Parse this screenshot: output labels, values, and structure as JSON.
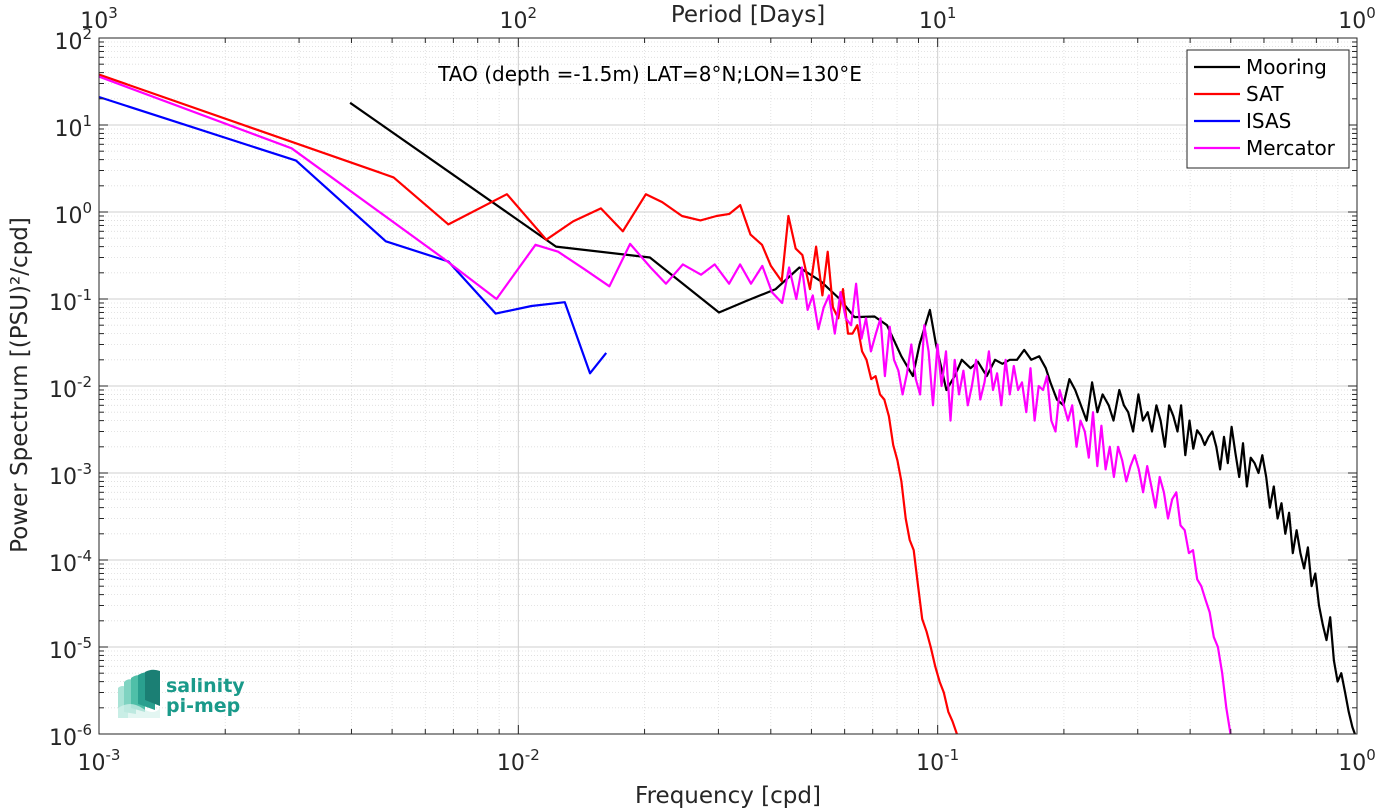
{
  "chart_data": {
    "type": "line",
    "title": "TAO (depth =-1.5m) LAT=8°N;LON=130°E",
    "xlabel": "Frequency [cpd]",
    "ylabel": "Power Spectrum [(PSU)²/cpd]",
    "top_xlabel": "Period [Days]",
    "xscale": "log",
    "yscale": "log",
    "xlim": [
      0.001,
      1
    ],
    "ylim": [
      1e-06,
      100
    ],
    "x_ticks": [
      0.001,
      0.01,
      0.1,
      1
    ],
    "x_tick_labels": [
      {
        "base": "10",
        "exp": "-3"
      },
      {
        "base": "10",
        "exp": "-2"
      },
      {
        "base": "10",
        "exp": "-1"
      },
      {
        "base": "10",
        "exp": "0"
      }
    ],
    "top_tick_labels": [
      {
        "base": "10",
        "exp": "3"
      },
      {
        "base": "10",
        "exp": "2"
      },
      {
        "base": "10",
        "exp": "1"
      },
      {
        "base": "10",
        "exp": "0"
      }
    ],
    "y_ticks": [
      1e-06,
      1e-05,
      0.0001,
      0.001,
      0.01,
      0.1,
      1,
      10,
      100
    ],
    "y_tick_labels": [
      {
        "base": "10",
        "exp": "-6"
      },
      {
        "base": "10",
        "exp": "-5"
      },
      {
        "base": "10",
        "exp": "-4"
      },
      {
        "base": "10",
        "exp": "-3"
      },
      {
        "base": "10",
        "exp": "-2"
      },
      {
        "base": "10",
        "exp": "-1"
      },
      {
        "base": "10",
        "exp": "0"
      },
      {
        "base": "10",
        "exp": "1"
      },
      {
        "base": "10",
        "exp": "2"
      }
    ],
    "grid": true,
    "minor_grid": true,
    "legend_position": "top-right",
    "series": [
      {
        "name": "Mooring",
        "color": "#000000",
        "x": [
          0.00397,
          0.0123,
          0.0206,
          0.0301,
          0.035,
          0.0411,
          0.0468,
          0.0526,
          0.0584,
          0.0633,
          0.0707,
          0.0757,
          0.0819,
          0.0873,
          0.0905,
          0.0958,
          0.0991,
          0.1049,
          0.1098,
          0.1142,
          0.1198,
          0.1247,
          0.1309,
          0.1371,
          0.1427,
          0.1486,
          0.1546,
          0.1608,
          0.1672,
          0.1746,
          0.1811,
          0.1857,
          0.1925,
          0.1994,
          0.2061,
          0.2128,
          0.2196,
          0.2266,
          0.2335,
          0.2404,
          0.2474,
          0.2558,
          0.2626,
          0.2711,
          0.2781,
          0.2847,
          0.2924,
          0.3011,
          0.3087,
          0.3168,
          0.3245,
          0.3323,
          0.3402,
          0.3482,
          0.3564,
          0.3648,
          0.3731,
          0.3806,
          0.3895,
          0.3986,
          0.407,
          0.4156,
          0.4244,
          0.4333,
          0.4425,
          0.4519,
          0.4617,
          0.4716,
          0.4818,
          0.4918,
          0.5022,
          0.5128,
          0.5236,
          0.5347,
          0.5462,
          0.5579,
          0.5699,
          0.5821,
          0.5946,
          0.6074,
          0.6199,
          0.6331,
          0.6466,
          0.6605,
          0.6745,
          0.6886,
          0.7031,
          0.7179,
          0.733,
          0.748,
          0.7637,
          0.7793,
          0.7954,
          0.8118,
          0.8286,
          0.8459,
          0.8633,
          0.8811,
          0.8991,
          0.9176,
          0.9365,
          0.9555,
          0.9752,
          0.9883
        ],
        "y": [
          18,
          0.4,
          0.3,
          0.07,
          0.095,
          0.13,
          0.23,
          0.16,
          0.1,
          0.062,
          0.063,
          0.05,
          0.022,
          0.013,
          0.03,
          0.075,
          0.03,
          0.009,
          0.013,
          0.02,
          0.016,
          0.019,
          0.013,
          0.02,
          0.018,
          0.02,
          0.02,
          0.026,
          0.02,
          0.022,
          0.016,
          0.011,
          0.007,
          0.006,
          0.012,
          0.009,
          0.006,
          0.004,
          0.011,
          0.005,
          0.008,
          0.006,
          0.004,
          0.009,
          0.006,
          0.005,
          0.003,
          0.008,
          0.004,
          0.005,
          0.003,
          0.006,
          0.004,
          0.002,
          0.006,
          0.0045,
          0.003,
          0.006,
          0.0016,
          0.004,
          0.0019,
          0.0031,
          0.0027,
          0.0021,
          0.0026,
          0.003,
          0.002,
          0.0011,
          0.0026,
          0.0013,
          0.0034,
          0.0017,
          0.0009,
          0.0022,
          0.0007,
          0.0015,
          0.0013,
          0.001,
          0.0016,
          0.0009,
          0.0004,
          0.0007,
          0.0003,
          0.00045,
          0.0002,
          0.00035,
          0.00012,
          0.00022,
          0.00012,
          8e-05,
          0.00014,
          5e-05,
          7e-05,
          3e-05,
          1.8e-05,
          1.2e-05,
          2.2e-05,
          7e-06,
          4e-06,
          5e-06,
          3e-06,
          1.8e-06,
          1.2e-06,
          1e-06
        ]
      },
      {
        "name": "SAT",
        "color": "#ff0000",
        "x": [
          0.001,
          0.00504,
          0.00681,
          0.00939,
          0.01166,
          0.01351,
          0.01574,
          0.01775,
          0.02015,
          0.02203,
          0.02456,
          0.02718,
          0.02969,
          0.03187,
          0.03382,
          0.03579,
          0.03812,
          0.04002,
          0.04247,
          0.04405,
          0.04586,
          0.04759,
          0.04962,
          0.05129,
          0.05309,
          0.05466,
          0.05624,
          0.05794,
          0.05947,
          0.06112,
          0.06265,
          0.06432,
          0.06605,
          0.06764,
          0.06941,
          0.07111,
          0.07285,
          0.07459,
          0.07652,
          0.07835,
          0.08016,
          0.08195,
          0.08392,
          0.08575,
          0.08767,
          0.0898,
          0.09185,
          0.09408,
          0.09624,
          0.09868,
          0.10107,
          0.10343,
          0.10604,
          0.10846,
          0.11115
        ],
        "y": [
          38,
          2.5,
          0.72,
          1.6,
          0.48,
          0.78,
          1.1,
          0.6,
          1.6,
          1.3,
          0.9,
          0.8,
          0.9,
          0.95,
          1.2,
          0.55,
          0.42,
          0.24,
          0.16,
          0.9,
          0.38,
          0.32,
          0.13,
          0.4,
          0.11,
          0.35,
          0.08,
          0.06,
          0.13,
          0.04,
          0.04,
          0.05,
          0.025,
          0.02,
          0.012,
          0.013,
          0.008,
          0.007,
          0.0045,
          0.0021,
          0.0014,
          0.0008,
          0.0003,
          0.00017,
          0.00013,
          5e-05,
          2.1e-05,
          1.5e-05,
          1e-05,
          6e-06,
          4e-06,
          3e-06,
          1.8e-06,
          1.4e-06,
          1e-06
        ]
      },
      {
        "name": "ISAS",
        "color": "#0000ff",
        "x": [
          0.001,
          0.00295,
          0.00483,
          0.00681,
          0.00883,
          0.01075,
          0.01291,
          0.01482,
          0.0162
        ],
        "y": [
          21,
          3.9,
          0.46,
          0.27,
          0.068,
          0.083,
          0.092,
          0.014,
          0.024
        ]
      },
      {
        "name": "Mercator",
        "color": "#ff00ff",
        "x": [
          0.001,
          0.00288,
          0.00658,
          0.00887,
          0.01099,
          0.01244,
          0.01437,
          0.01649,
          0.01847,
          0.02067,
          0.0225,
          0.02469,
          0.02727,
          0.02939,
          0.03181,
          0.0338,
          0.03587,
          0.03818,
          0.04024,
          0.04255,
          0.04422,
          0.04601,
          0.04745,
          0.04897,
          0.05039,
          0.05196,
          0.05349,
          0.05505,
          0.05683,
          0.05865,
          0.0604,
          0.06216,
          0.06389,
          0.06582,
          0.06748,
          0.06931,
          0.07123,
          0.07307,
          0.07485,
          0.07685,
          0.07868,
          0.0806,
          0.08248,
          0.08449,
          0.08651,
          0.08868,
          0.09081,
          0.09294,
          0.09513,
          0.09749,
          0.0999,
          0.1022,
          0.1047,
          0.1073,
          0.1098,
          0.1124,
          0.1152,
          0.118,
          0.1207,
          0.1235,
          0.1264,
          0.1293,
          0.1325,
          0.1355,
          0.1386,
          0.1418,
          0.1452,
          0.1486,
          0.1519,
          0.1555,
          0.1589,
          0.1627,
          0.1665,
          0.1703,
          0.1742,
          0.1783,
          0.1823,
          0.1866,
          0.191,
          0.1954,
          0.1999,
          0.2045,
          0.2093,
          0.2143,
          0.2191,
          0.2243,
          0.2293,
          0.2346,
          0.2402,
          0.2457,
          0.2514,
          0.2573,
          0.2632,
          0.2693,
          0.2754,
          0.2818,
          0.2883,
          0.295,
          0.3018,
          0.3089,
          0.316,
          0.3233,
          0.3307,
          0.3385,
          0.3463,
          0.3542,
          0.3625,
          0.3708,
          0.3795,
          0.3882,
          0.3972,
          0.4064,
          0.4158,
          0.4253,
          0.4352,
          0.4453,
          0.4556,
          0.466,
          0.4769,
          0.4879,
          0.4992
        ],
        "y": [
          36,
          5.4,
          0.3,
          0.1,
          0.42,
          0.35,
          0.22,
          0.14,
          0.43,
          0.23,
          0.15,
          0.25,
          0.19,
          0.25,
          0.15,
          0.25,
          0.15,
          0.24,
          0.12,
          0.09,
          0.23,
          0.1,
          0.23,
          0.075,
          0.11,
          0.045,
          0.08,
          0.11,
          0.04,
          0.12,
          0.06,
          0.05,
          0.15,
          0.035,
          0.06,
          0.025,
          0.04,
          0.06,
          0.013,
          0.048,
          0.02,
          0.015,
          0.008,
          0.014,
          0.03,
          0.012,
          0.008,
          0.05,
          0.025,
          0.006,
          0.03,
          0.01,
          0.025,
          0.004,
          0.02,
          0.008,
          0.015,
          0.006,
          0.01,
          0.02,
          0.007,
          0.011,
          0.025,
          0.009,
          0.014,
          0.006,
          0.02,
          0.008,
          0.017,
          0.009,
          0.011,
          0.005,
          0.016,
          0.004,
          0.01,
          0.009,
          0.013,
          0.004,
          0.003,
          0.009,
          0.006,
          0.004,
          0.006,
          0.002,
          0.004,
          0.003,
          0.0015,
          0.005,
          0.0012,
          0.0035,
          0.0011,
          0.002,
          0.0009,
          0.002,
          0.0014,
          0.0008,
          0.0012,
          0.0016,
          0.0011,
          0.0006,
          0.0012,
          0.0007,
          0.0004,
          0.0009,
          0.0006,
          0.0003,
          0.0005,
          0.0006,
          0.00025,
          0.00022,
          0.00012,
          0.00013,
          6e-05,
          5e-05,
          3.5e-05,
          2.5e-05,
          1.3e-05,
          1e-05,
          5e-06,
          2e-06,
          1e-06
        ]
      }
    ]
  },
  "logo": {
    "line1": "salinity",
    "line2": "pi-mep"
  }
}
